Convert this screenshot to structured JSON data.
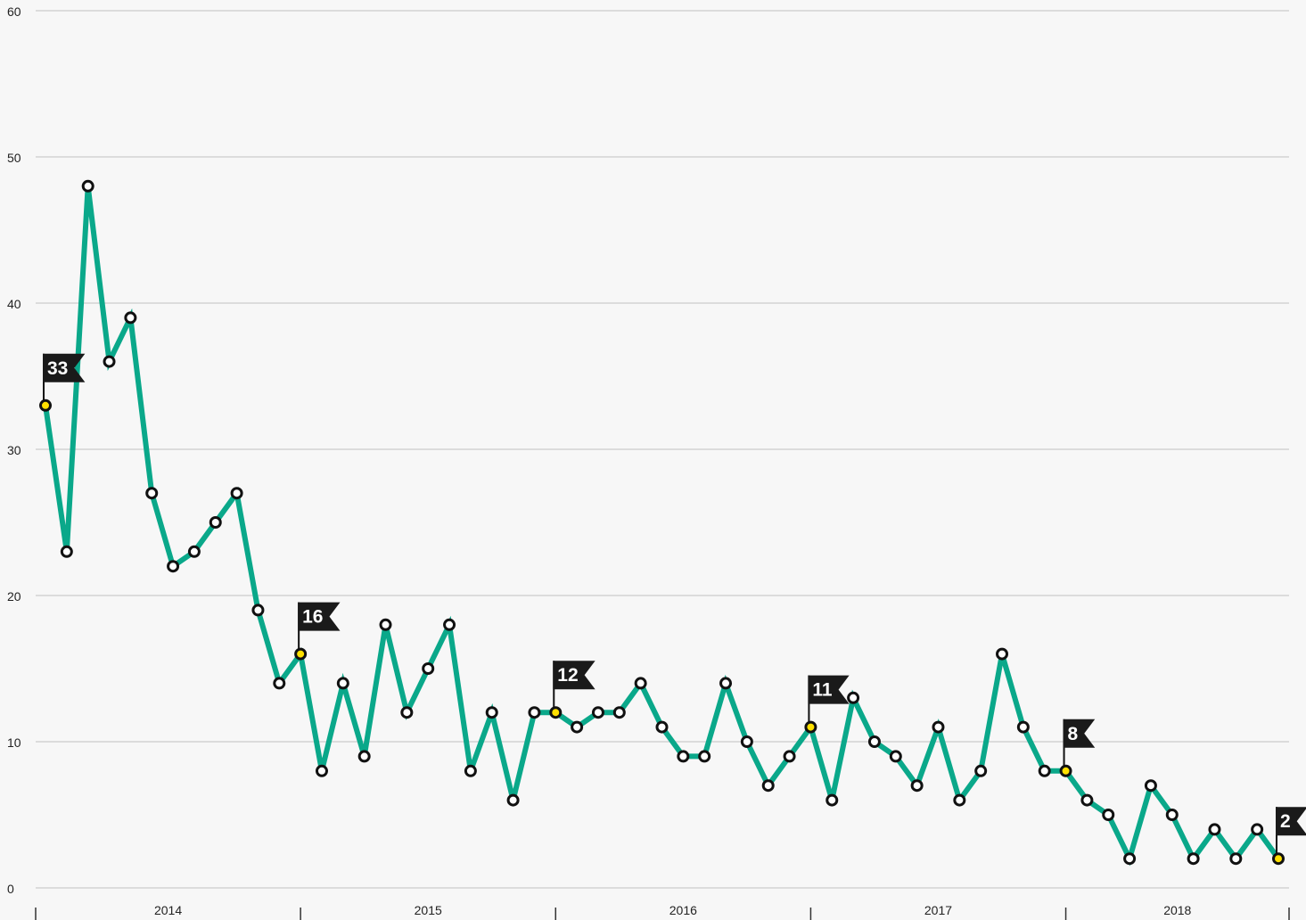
{
  "chart_data": {
    "type": "line",
    "years": [
      "2014",
      "2015",
      "2016",
      "2017",
      "2018"
    ],
    "values": [
      33,
      23,
      48,
      36,
      39,
      27,
      22,
      23,
      25,
      27,
      19,
      14,
      16,
      8,
      14,
      9,
      18,
      12,
      15,
      18,
      8,
      12,
      6,
      12,
      12,
      11,
      12,
      12,
      14,
      11,
      9,
      9,
      14,
      10,
      7,
      9,
      11,
      6,
      13,
      10,
      9,
      7,
      11,
      6,
      8,
      16,
      11,
      8,
      8,
      6,
      5,
      2,
      7,
      5,
      2,
      4,
      2,
      4,
      2
    ],
    "flagged": [
      0,
      12,
      24,
      36,
      48,
      58
    ],
    "ylim": [
      0,
      60
    ],
    "yticks": [
      0,
      10,
      20,
      30,
      40,
      50,
      60
    ],
    "grid": true,
    "color": "#0aa88a",
    "highlight_color": "#ffe000"
  }
}
